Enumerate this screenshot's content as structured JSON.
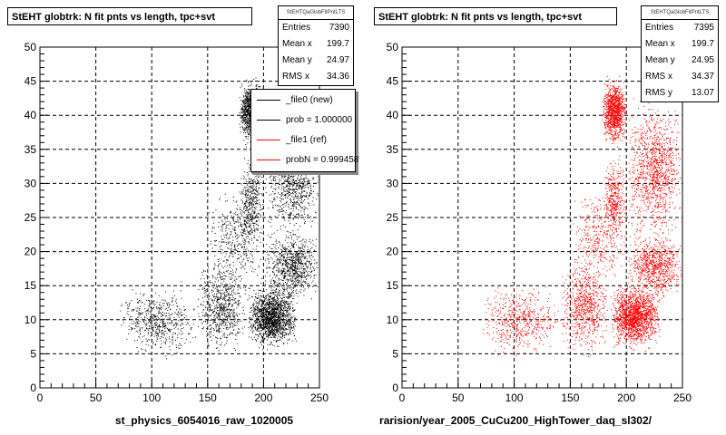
{
  "chart_data": [
    {
      "type": "scatter",
      "title": "StEHT globtrk: N fit pnts vs length, tpc+svt",
      "xlabel": "st_physics_6054016_raw_1020005",
      "xlim": [
        0,
        250
      ],
      "ylim": [
        0,
        50
      ],
      "x_ticks": [
        "0",
        "50",
        "100",
        "150",
        "200",
        "250"
      ],
      "y_ticks": [
        "0",
        "5",
        "10",
        "15",
        "20",
        "25",
        "30",
        "35",
        "40",
        "45",
        "50"
      ],
      "grid": true,
      "marker_color": "#000000",
      "stats": {
        "header": "StEHTQaGlobFitPntLTS",
        "rows": [
          {
            "label": "Entries",
            "value": "7390"
          },
          {
            "label": "Mean x",
            "value": "199.7"
          },
          {
            "label": "Mean y",
            "value": "24.97"
          },
          {
            "label": "RMS x",
            "value": "34.36"
          }
        ]
      },
      "legend": [
        {
          "label": "_file0 (new)",
          "color": "#000000"
        },
        {
          "label": "prob = 1.000000",
          "color": "#000000"
        },
        {
          "label": "_file1 (ref)",
          "color": "#ff0000"
        },
        {
          "label": "probN = 0.999458",
          "color": "#ff0000"
        }
      ],
      "clusters": [
        {
          "x": [
            178,
            200
          ],
          "y": [
            35,
            46
          ],
          "n": 1050
        },
        {
          "x": [
            200,
            250
          ],
          "y": [
            20,
            44
          ],
          "n": 1150
        },
        {
          "x": [
            178,
            200
          ],
          "y": [
            20,
            35
          ],
          "n": 380
        },
        {
          "x": [
            185,
            230
          ],
          "y": [
            5,
            16
          ],
          "n": 1600
        },
        {
          "x": [
            140,
            185
          ],
          "y": [
            4,
            20
          ],
          "n": 700
        },
        {
          "x": [
            70,
            140
          ],
          "y": [
            4,
            16
          ],
          "n": 550
        },
        {
          "x": [
            200,
            250
          ],
          "y": [
            12,
            24
          ],
          "n": 800
        },
        {
          "x": [
            150,
            200
          ],
          "y": [
            14,
            30
          ],
          "n": 380
        }
      ]
    },
    {
      "type": "scatter",
      "title": "StEHT globtrk: N fit pnts vs length, tpc+svt",
      "xlabel": "rarision/year_2005_CuCu200_HighTower_daq_sl302/",
      "xlim": [
        0,
        250
      ],
      "ylim": [
        0,
        50
      ],
      "x_ticks": [
        "0",
        "50",
        "100",
        "150",
        "200",
        "250"
      ],
      "y_ticks": [
        "0",
        "5",
        "10",
        "15",
        "20",
        "25",
        "30",
        "35",
        "40",
        "45",
        "50"
      ],
      "grid": true,
      "marker_color": "#ff0000",
      "stats": {
        "header": "StEHTQaGlobFitPntLTS",
        "rows": [
          {
            "label": "Entries",
            "value": "7395"
          },
          {
            "label": "Mean x",
            "value": "199.7"
          },
          {
            "label": "Mean y",
            "value": "24.95"
          },
          {
            "label": "RMS x",
            "value": "34.37"
          },
          {
            "label": "RMS y",
            "value": "13.07"
          }
        ]
      },
      "clusters": [
        {
          "x": [
            178,
            200
          ],
          "y": [
            35,
            46
          ],
          "n": 1050
        },
        {
          "x": [
            200,
            250
          ],
          "y": [
            20,
            44
          ],
          "n": 1150
        },
        {
          "x": [
            178,
            200
          ],
          "y": [
            20,
            35
          ],
          "n": 380
        },
        {
          "x": [
            185,
            230
          ],
          "y": [
            5,
            16
          ],
          "n": 1600
        },
        {
          "x": [
            140,
            185
          ],
          "y": [
            4,
            20
          ],
          "n": 700
        },
        {
          "x": [
            70,
            140
          ],
          "y": [
            4,
            16
          ],
          "n": 550
        },
        {
          "x": [
            200,
            250
          ],
          "y": [
            12,
            24
          ],
          "n": 800
        },
        {
          "x": [
            150,
            200
          ],
          "y": [
            14,
            30
          ],
          "n": 380
        }
      ]
    }
  ]
}
